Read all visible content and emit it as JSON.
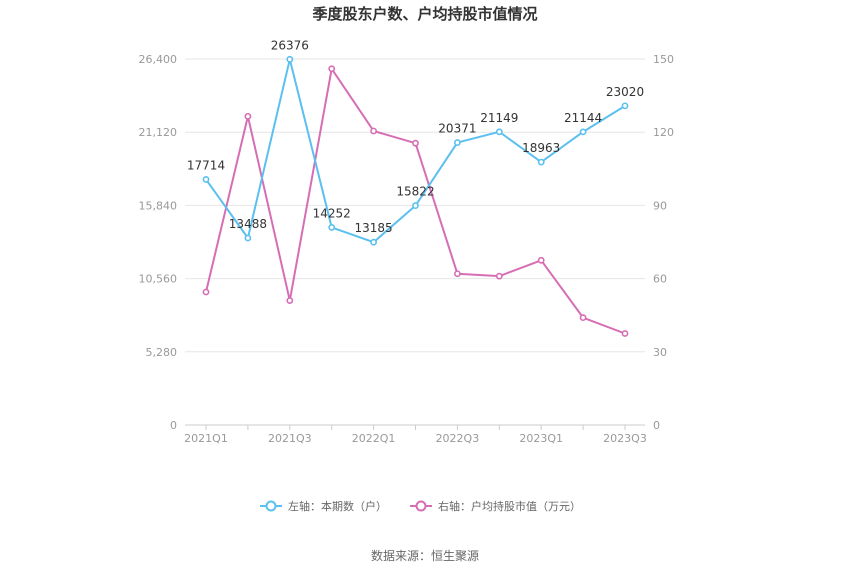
{
  "chart_data": {
    "type": "line",
    "title": "季度股东户数、户均持股市值情况",
    "categories": [
      "2021Q1",
      "2021Q2",
      "2021Q3",
      "2021Q4",
      "2022Q1",
      "2022Q2",
      "2022Q3",
      "2022Q4",
      "2023Q1",
      "2023Q2",
      "2023Q3"
    ],
    "x_tick_labels": [
      "2021Q1",
      "2021Q3",
      "2022Q1",
      "2022Q3",
      "2023Q1",
      "2023Q3"
    ],
    "left_axis": {
      "ticks": [
        "0",
        "5,280",
        "10,560",
        "15,840",
        "21,120",
        "26,400"
      ],
      "ylim": [
        0,
        26400
      ]
    },
    "right_axis": {
      "ticks": [
        "0",
        "30",
        "60",
        "90",
        "120",
        "150"
      ],
      "ylim": [
        0,
        150
      ]
    },
    "series": [
      {
        "name": "左轴：本期数（户）",
        "axis": "left",
        "color": "#5bc0ef",
        "values": [
          17714,
          13488,
          26376,
          14252,
          13185,
          15822,
          20371,
          21149,
          18963,
          21144,
          23020
        ],
        "labels": [
          "17714",
          "13488",
          "26376",
          "14252",
          "13185",
          "15822",
          "20371",
          "21149",
          "18963",
          "21144",
          "23020"
        ]
      },
      {
        "name": "右轴：户均持股市值（万元）",
        "axis": "right",
        "color": "#d66eb5",
        "values": [
          54.5,
          126.5,
          51,
          146,
          120.5,
          115.5,
          62,
          61,
          67.5,
          44,
          37.5
        ]
      }
    ],
    "grid": true,
    "legend_position": "bottom"
  },
  "source": "数据来源：恒生聚源"
}
